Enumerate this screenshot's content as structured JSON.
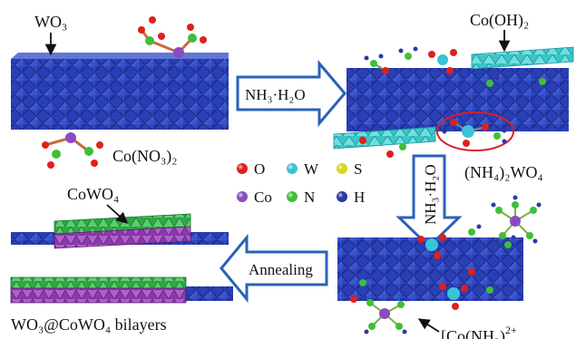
{
  "labels": {
    "wo3": "WO₃",
    "co_no3": "Co(NO₃)₂",
    "co_oh2": "Co(OH)₂",
    "nh4_wo4": "(NH₄)₂WO₄",
    "cowo4": "CoWO₄",
    "bilayers": "WO₃@CoWO₄ bilayers",
    "co_nh3_prefix": "[Co(NH",
    "co_nh3_sub": "3",
    "co_nh3_suffix": ")",
    "co_nh3_charge": "2+"
  },
  "arrows": {
    "step1": "NH₃·H₂O",
    "step2": "NH₃·H₂O",
    "step3": "Annealing"
  },
  "legend": [
    {
      "symbol": "O",
      "color": "#e0201c"
    },
    {
      "symbol": "W",
      "color": "#3bc3d6"
    },
    {
      "symbol": "S",
      "color": "#d6d81e"
    },
    {
      "symbol": "Co",
      "color": "#8a4cc0"
    },
    {
      "symbol": "N",
      "color": "#3fbf3a"
    },
    {
      "symbol": "H",
      "color": "#2a3aa0"
    }
  ],
  "colors": {
    "wo3_octahedra": "#2f49c8",
    "wo3_octahedra_dark": "#1a2a86",
    "co_oh2_sheet": "#3cc6c6",
    "cowo4_green": "#2fa84a",
    "cowo4_purple": "#8a3aa8",
    "arrow_outline": "#2a62b8",
    "ellipse": "#d8202a"
  }
}
